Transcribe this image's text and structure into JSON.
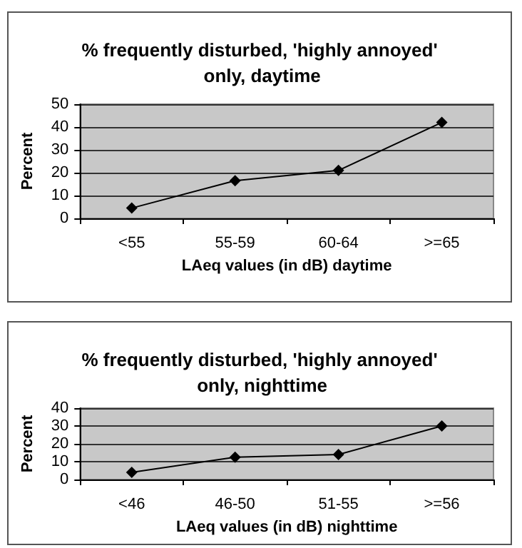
{
  "chart_data": [
    {
      "type": "line",
      "title": "% frequently disturbed, 'highly annoyed' only, daytime",
      "xlabel": "LAeq values (in dB) daytime",
      "ylabel": "Percent",
      "categories": [
        "<55",
        "55-59",
        "60-64",
        ">=65"
      ],
      "values": [
        4.5,
        16.5,
        21,
        42
      ],
      "color": "#000000",
      "ylim": [
        0,
        50
      ],
      "yticks": [
        0,
        10,
        20,
        30,
        40,
        50
      ],
      "grid": "y",
      "marker": "diamond"
    },
    {
      "type": "line",
      "title": "% frequently disturbed, 'highly annoyed' only, nighttime",
      "xlabel": "LAeq values (in dB) nighttime",
      "ylabel": "Percent",
      "categories": [
        "<46",
        "46-50",
        "51-55",
        ">=56"
      ],
      "values": [
        4,
        12.5,
        14,
        30
      ],
      "color": "#000000",
      "ylim": [
        0,
        40
      ],
      "yticks": [
        0,
        10,
        20,
        30,
        40
      ],
      "grid": "y",
      "marker": "diamond"
    }
  ]
}
